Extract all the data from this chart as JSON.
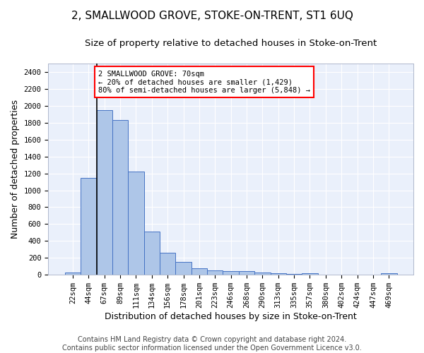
{
  "title": "2, SMALLWOOD GROVE, STOKE-ON-TRENT, ST1 6UQ",
  "subtitle": "Size of property relative to detached houses in Stoke-on-Trent",
  "xlabel": "Distribution of detached houses by size in Stoke-on-Trent",
  "ylabel": "Number of detached properties",
  "categories": [
    "22sqm",
    "44sqm",
    "67sqm",
    "89sqm",
    "111sqm",
    "134sqm",
    "156sqm",
    "178sqm",
    "201sqm",
    "223sqm",
    "246sqm",
    "268sqm",
    "290sqm",
    "313sqm",
    "335sqm",
    "357sqm",
    "380sqm",
    "402sqm",
    "424sqm",
    "447sqm",
    "469sqm"
  ],
  "values": [
    30,
    1150,
    1950,
    1830,
    1220,
    510,
    265,
    150,
    80,
    48,
    42,
    40,
    25,
    20,
    12,
    20,
    0,
    0,
    0,
    0,
    15
  ],
  "bar_color": "#aec6e8",
  "bar_edge_color": "#4472c4",
  "annotation_line1": "2 SMALLWOOD GROVE: 70sqm",
  "annotation_line2": "← 20% of detached houses are smaller (1,429)",
  "annotation_line3": "80% of semi-detached houses are larger (5,848) →",
  "property_bin_index": 2,
  "ylim": [
    0,
    2500
  ],
  "yticks": [
    0,
    200,
    400,
    600,
    800,
    1000,
    1200,
    1400,
    1600,
    1800,
    2000,
    2200,
    2400
  ],
  "footer_line1": "Contains HM Land Registry data © Crown copyright and database right 2024.",
  "footer_line2": "Contains public sector information licensed under the Open Government Licence v3.0.",
  "bg_color": "#eaf0fb",
  "grid_color": "#ffffff",
  "title_fontsize": 11,
  "subtitle_fontsize": 9.5,
  "axis_label_fontsize": 9,
  "tick_fontsize": 7.5,
  "footer_fontsize": 7
}
